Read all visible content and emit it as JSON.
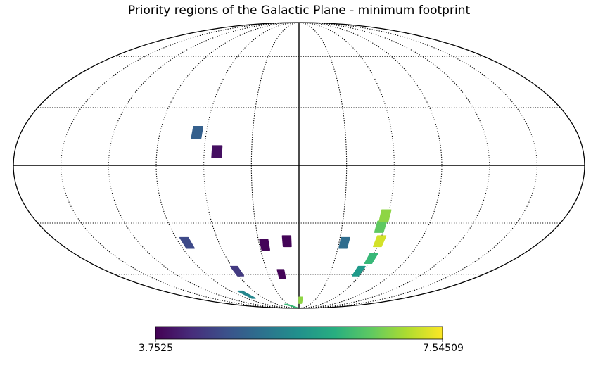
{
  "chart_data": {
    "type": "heatmap",
    "projection": "mollweide",
    "title": "Priority regions of the Galactic Plane - minimum footprint",
    "colormap": "viridis",
    "grid": true,
    "colorbar": {
      "min": 3.7525,
      "max": 7.54509,
      "min_label": "3.7525",
      "max_label": "7.54509",
      "placement": "bottom"
    },
    "regions": [
      {
        "lon": 66,
        "lat": 17,
        "value": 4.9
      },
      {
        "lon": 52,
        "lat": 7,
        "value": 3.9
      },
      {
        "lon": 84,
        "lat": -41,
        "value": 4.6
      },
      {
        "lon": 58,
        "lat": -58,
        "value": 4.4
      },
      {
        "lon": 78,
        "lat": -75,
        "value": 5.5
      },
      {
        "lon": 26,
        "lat": -42,
        "value": 3.8
      },
      {
        "lon": 9,
        "lat": -40,
        "value": 3.8
      },
      {
        "lon": 17,
        "lat": -60,
        "value": 3.8
      },
      {
        "lon": 35,
        "lat": -87,
        "value": 6.3
      },
      {
        "lon": -3,
        "lat": -80,
        "value": 6.9
      },
      {
        "lon": -34,
        "lat": -41,
        "value": 5.1
      },
      {
        "lon": -57,
        "lat": -32,
        "value": 6.6
      },
      {
        "lon": -58,
        "lat": -26,
        "value": 6.9
      },
      {
        "lon": -60,
        "lat": -40,
        "value": 7.3
      },
      {
        "lon": -60,
        "lat": -50,
        "value": 6.3
      },
      {
        "lon": -56,
        "lat": -58,
        "value": 5.8
      }
    ]
  }
}
